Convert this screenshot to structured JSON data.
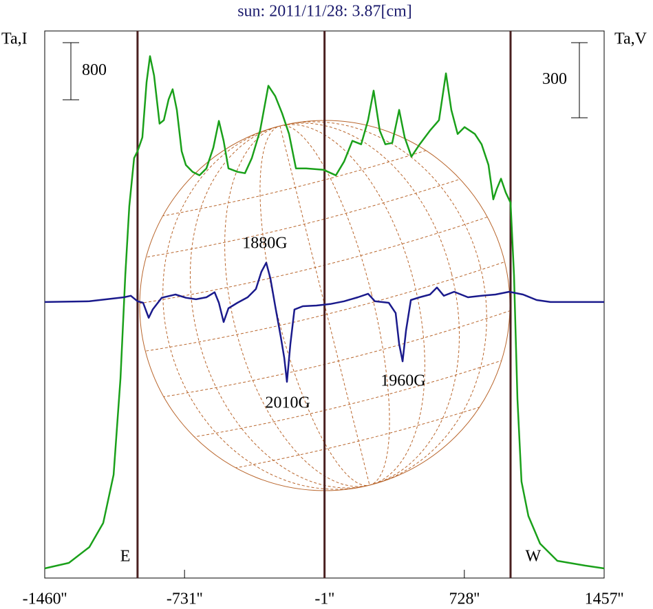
{
  "chart_data": {
    "type": "line",
    "title": "sun: 2011/11/28: 3.87[cm]",
    "y_label": "Ta,I",
    "y2_label": "Ta,V",
    "xlim": [
      -1460,
      1457
    ],
    "xticks": [
      {
        "value": -1460,
        "label": "-1460''"
      },
      {
        "value": -731,
        "label": "-731''"
      },
      {
        "value": -1,
        "label": "-1''"
      },
      {
        "value": 728,
        "label": "728''"
      },
      {
        "value": 1457,
        "label": "1457''"
      }
    ],
    "ylim": [
      0,
      7660
    ],
    "y2lim": [
      -1103,
      1083
    ],
    "y_scale_bar": 800,
    "y2_scale_bar": 300,
    "vlines": [
      -976,
      -1,
      969
    ],
    "series": [
      {
        "name": "Ta,I",
        "color": "#1aa01a",
        "x": [
          -1460,
          -1334,
          -1227,
          -1155,
          -1101,
          -1065,
          -1040,
          -1019,
          -994,
          -976,
          -951,
          -929,
          -911,
          -890,
          -861,
          -839,
          -814,
          -793,
          -771,
          -746,
          -724,
          -689,
          -653,
          -617,
          -581,
          -552,
          -527,
          -502,
          -455,
          -416,
          -380,
          -337,
          -294,
          -258,
          -222,
          -186,
          -150,
          -97,
          -7,
          58,
          101,
          144,
          190,
          226,
          255,
          287,
          316,
          352,
          388,
          417,
          452,
          495,
          549,
          596,
          632,
          660,
          693,
          729,
          783,
          818,
          854,
          879,
          897,
          919,
          944,
          969,
          987,
          1005,
          1026,
          1062,
          1123,
          1213,
          1357,
          1457
        ],
        "values": [
          135,
          212,
          434,
          771,
          1446,
          2796,
          4242,
          5206,
          5880,
          5977,
          6170,
          6941,
          7307,
          7037,
          6362,
          6411,
          6700,
          6844,
          6555,
          5977,
          5784,
          5688,
          5639,
          5736,
          6025,
          6401,
          6121,
          5736,
          5688,
          5668,
          5880,
          6266,
          6893,
          6748,
          6507,
          6218,
          5736,
          5736,
          5717,
          5639,
          5832,
          6121,
          6073,
          6411,
          6825,
          6266,
          6073,
          6092,
          6555,
          6170,
          5900,
          6073,
          6266,
          6411,
          7066,
          6555,
          6218,
          6314,
          6218,
          6073,
          5784,
          5302,
          5447,
          5591,
          5398,
          5254,
          4242,
          2506,
          1350,
          868,
          482,
          241,
          174,
          135
        ]
      },
      {
        "name": "Ta,V",
        "color": "#1a1a8c",
        "axis": "y2",
        "x": [
          -1460,
          -1227,
          -1047,
          -1011,
          -976,
          -947,
          -918,
          -897,
          -850,
          -778,
          -724,
          -671,
          -617,
          -574,
          -552,
          -527,
          -502,
          -455,
          -402,
          -359,
          -330,
          -305,
          -283,
          -258,
          -229,
          -211,
          -197,
          -179,
          -158,
          -114,
          -43,
          29,
          101,
          173,
          226,
          262,
          334,
          370,
          388,
          406,
          424,
          449,
          495,
          549,
          585,
          621,
          675,
          747,
          818,
          890,
          962,
          1034,
          1105,
          1177,
          1457
        ],
        "values": [
          0,
          3,
          19,
          25,
          3,
          -3,
          -63,
          -30,
          17,
          30,
          17,
          11,
          19,
          39,
          -3,
          -80,
          -25,
          -3,
          19,
          52,
          121,
          157,
          94,
          -17,
          -140,
          -223,
          -319,
          -168,
          -30,
          -17,
          -14,
          -8,
          3,
          19,
          33,
          3,
          -3,
          -44,
          -168,
          -237,
          -113,
          8,
          19,
          30,
          58,
          25,
          41,
          19,
          25,
          30,
          41,
          30,
          8,
          0,
          0
        ]
      }
    ],
    "annotations": [
      {
        "text": "1880G",
        "x": -312,
        "y": 231
      },
      {
        "text": "2010G",
        "x": -193,
        "y": -407
      },
      {
        "text": "1960G",
        "x": 409,
        "y": -319
      },
      {
        "text": "E",
        "x": -1040,
        "y": -1020
      },
      {
        "text": "W",
        "x": 1087,
        "y": -1020
      }
    ]
  }
}
